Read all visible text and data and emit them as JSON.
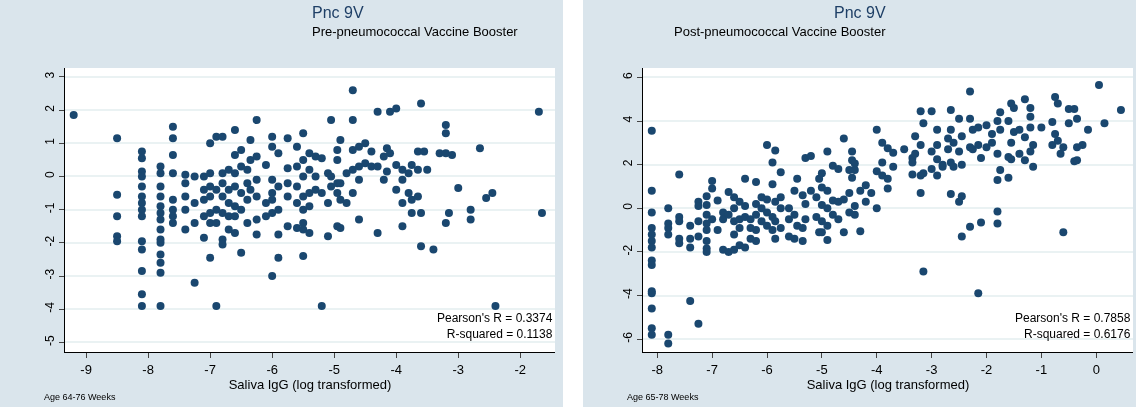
{
  "chart_data": [
    {
      "type": "scatter",
      "title": "Pnc 9V",
      "subtitle": "Pre-pneumococcal Vaccine Booster",
      "xlabel": "Saliva IgG (log transformed)",
      "annotations": [
        "Age 64-76 Weeks",
        "Pearson's R = 0.3374\nR-squared = 0.1138"
      ],
      "color": "#1a476f",
      "marker": "circle",
      "grid": "y",
      "xlim": [
        -9.34,
        -1.44
      ],
      "ylim": [
        -5.29,
        3.27
      ],
      "xticks": [
        -9,
        -8,
        -7,
        -6,
        -5,
        -4,
        -3,
        -2
      ],
      "yticks": [
        -5,
        -4,
        -3,
        -2,
        -1,
        0,
        1,
        2,
        3
      ],
      "x": [
        -9.2,
        -8.5,
        -8.5,
        -8.5,
        -8.5,
        -8.5,
        -8.1,
        -8.1,
        -8.1,
        -8.1,
        -8.1,
        -8.1,
        -8.1,
        -8.1,
        -8.1,
        -8.1,
        -8.1,
        -8.1,
        -8.1,
        -8.1,
        -7.8,
        -7.8,
        -7.8,
        -7.8,
        -7.8,
        -7.8,
        -7.8,
        -7.8,
        -7.8,
        -7.8,
        -7.8,
        -7.8,
        -7.8,
        -7.8,
        -7.6,
        -7.6,
        -7.6,
        -7.6,
        -7.6,
        -7.6,
        -7.6,
        -7.6,
        -7.4,
        -7.4,
        -7.4,
        -7.4,
        -7.4,
        -7.25,
        -7.25,
        -7.25,
        -7.25,
        -7.1,
        -7.1,
        -7.1,
        -7.1,
        -7.1,
        -7.0,
        -7.0,
        -7.0,
        -7.0,
        -7.0,
        -7.0,
        -7.0,
        -6.9,
        -6.9,
        -6.9,
        -6.9,
        -6.9,
        -6.8,
        -6.8,
        -6.8,
        -6.8,
        -6.8,
        -6.8,
        -6.8,
        -6.7,
        -6.7,
        -6.7,
        -6.7,
        -6.7,
        -6.6,
        -6.6,
        -6.6,
        -6.6,
        -6.6,
        -6.6,
        -6.6,
        -6.5,
        -6.5,
        -6.5,
        -6.5,
        -6.5,
        -6.4,
        -6.4,
        -6.4,
        -6.4,
        -6.35,
        -6.35,
        -6.35,
        -6.25,
        -6.25,
        -6.25,
        -6.25,
        -6.25,
        -6.25,
        -6.1,
        -6.1,
        -6.1,
        -6.0,
        -6.0,
        -6.0,
        -6.0,
        -6.0,
        -6.0,
        -6.0,
        -5.9,
        -5.9,
        -5.9,
        -5.9,
        -5.9,
        -5.75,
        -5.75,
        -5.75,
        -5.75,
        -5.75,
        -5.6,
        -5.6,
        -5.6,
        -5.6,
        -5.6,
        -5.5,
        -5.5,
        -5.5,
        -5.5,
        -5.5,
        -5.5,
        -5.5,
        -5.5,
        -5.4,
        -5.4,
        -5.4,
        -5.4,
        -5.4,
        -5.3,
        -5.3,
        -5.3,
        -5.2,
        -5.2,
        -5.2,
        -5.1,
        -5.1,
        -5.1,
        -5.05,
        -5.05,
        -5.05,
        -4.95,
        -4.95,
        -4.95,
        -4.95,
        -4.95,
        -4.9,
        -4.9,
        -4.9,
        -4.9,
        -4.8,
        -4.8,
        -4.7,
        -4.7,
        -4.7,
        -4.7,
        -4.7,
        -4.6,
        -4.6,
        -4.6,
        -4.6,
        -4.5,
        -4.5,
        -4.4,
        -4.4,
        -4.3,
        -4.3,
        -4.3,
        -4.2,
        -4.2,
        -4.15,
        -4.15,
        -4.1,
        -4.1,
        -4.0,
        -4.0,
        -4.0,
        -3.9,
        -3.9,
        -3.9,
        -3.9,
        -3.8,
        -3.8,
        -3.75,
        -3.75,
        -3.75,
        -3.65,
        -3.65,
        -3.65,
        -3.6,
        -3.6,
        -3.6,
        -3.55,
        -3.5,
        -3.4,
        -3.3,
        -3.2,
        -3.2,
        -3.2,
        -3.2,
        -3.15,
        -3.1,
        -3.0,
        -2.8,
        -2.8,
        -2.65,
        -2.55,
        -2.45,
        -2.4,
        -1.7,
        -1.65
      ],
      "values": [
        1.85,
        1.15,
        -0.55,
        -1.2,
        -1.8,
        -1.95,
        0.75,
        0.55,
        0.15,
        0,
        -0.3,
        -0.6,
        -0.8,
        -1.0,
        -1.2,
        -1.95,
        -2.2,
        -2.85,
        -3.55,
        -3.9,
        0.3,
        0.1,
        -0.3,
        -0.6,
        -0.9,
        -1.1,
        -1.3,
        -1.6,
        -1.9,
        -2.0,
        -2.35,
        -2.6,
        -2.9,
        -3.9,
        1.5,
        1.15,
        0.65,
        0.1,
        -0.7,
        -1.0,
        -1.2,
        -1.4,
        0.05,
        -0.2,
        -0.6,
        -1.0,
        -1.6,
        0.0,
        -0.8,
        -1.4,
        -3.2,
        0.0,
        -0.4,
        -0.7,
        -1.2,
        -1.85,
        1.0,
        0.1,
        -0.3,
        -0.6,
        -1.1,
        -1.4,
        -2.45,
        1.2,
        -0.4,
        -1.0,
        -1.4,
        -3.9,
        1.2,
        0.1,
        -0.2,
        -0.6,
        -1.1,
        -1.9,
        -2.05,
        0.2,
        -0.4,
        -0.8,
        -1.2,
        -1.6,
        1.4,
        0.65,
        0.1,
        -0.3,
        -0.9,
        -1.2,
        -1.7,
        0.8,
        0.3,
        -0.5,
        -1.0,
        -2.3,
        0.2,
        -0.2,
        -0.7,
        -1.4,
        1.1,
        0.5,
        -0.4,
        1.7,
        0.6,
        -0.1,
        -0.6,
        -1.3,
        -1.75,
        0.35,
        -0.8,
        -1.2,
        1.2,
        0.9,
        -0.1,
        -0.5,
        -0.7,
        -1.1,
        -3.0,
        0.7,
        -0.3,
        -1.0,
        -1.75,
        -2.45,
        1.15,
        0.25,
        -0.2,
        -0.6,
        -1.5,
        0.9,
        0.3,
        -0.3,
        -0.8,
        -1.55,
        1.3,
        0.5,
        0,
        -0.6,
        -1.0,
        -1.4,
        -1.6,
        -2.4,
        0.7,
        0.2,
        -0.5,
        -0.9,
        -1.7,
        0.6,
        0.0,
        -0.4,
        0.55,
        -0.5,
        -3.9,
        0.1,
        -0.8,
        -1.8,
        1.7,
        0.0,
        -0.3,
        0.8,
        0.5,
        -0.2,
        -0.5,
        -1.5,
        1.1,
        -0.2,
        -0.7,
        -1.55,
        0.1,
        -0.8,
        2.6,
        1.7,
        0.8,
        0.2,
        -0.5,
        0.9,
        0.3,
        -0.1,
        -1.3,
        1.0,
        0.4,
        0.75,
        0.3,
        1.95,
        0.3,
        -1.7,
        0.6,
        -0.1,
        0.85,
        0.15,
        1.95,
        0.7,
        2.05,
        0.35,
        -0.4,
        0.2,
        -0.1,
        -0.8,
        -1.5,
        0.1,
        -0.5,
        0.35,
        -0.7,
        -1.1,
        0.75,
        0.2,
        -0.6,
        2.2,
        -1.1,
        -2.1,
        0.75,
        0.2,
        -2.2,
        0.7,
        1.55,
        1.3,
        0.7,
        -1.4,
        -1.1,
        0.65,
        -0.35,
        -1.0,
        -1.3,
        0.85,
        -0.65,
        -0.5,
        -3.9,
        1.95,
        -1.1
      ]
    },
    {
      "type": "scatter",
      "title": "Pnc 9V",
      "subtitle": "Post-pneumococcal Vaccine Booster",
      "xlabel": "Saliva IgG (log transformed)",
      "annotations": [
        "Age 65-78 Weeks",
        "Pearson's R = 0.7858\nR-squared = 0.6176"
      ],
      "color": "#1a476f",
      "marker": "circle",
      "grid": "y",
      "xlim": [
        -8.26,
        0.67
      ],
      "ylim": [
        -6.59,
        6.43
      ],
      "xticks": [
        -8,
        -7,
        -6,
        -5,
        -4,
        -3,
        -2,
        -1,
        0
      ],
      "yticks": [
        -6,
        -4,
        -2,
        0,
        2,
        4,
        6
      ],
      "x": [
        -8.1,
        -8.1,
        -8.1,
        -8.1,
        -8.1,
        -8.1,
        -8.1,
        -8.1,
        -8.1,
        -8.1,
        -8.1,
        -8.1,
        -8.1,
        -8.1,
        -7.8,
        -7.8,
        -7.8,
        -7.8,
        -7.8,
        -7.8,
        -7.6,
        -7.6,
        -7.6,
        -7.6,
        -7.6,
        -7.4,
        -7.4,
        -7.4,
        -7.4,
        -7.25,
        -7.25,
        -7.25,
        -7.25,
        -7.25,
        -7.1,
        -7.1,
        -7.1,
        -7.1,
        -7.1,
        -7.1,
        -7.1,
        -7.1,
        -7.0,
        -7.0,
        -7.0,
        -6.9,
        -6.9,
        -6.8,
        -6.8,
        -6.8,
        -6.7,
        -6.7,
        -6.7,
        -6.6,
        -6.6,
        -6.6,
        -6.6,
        -6.6,
        -6.5,
        -6.5,
        -6.5,
        -6.5,
        -6.4,
        -6.4,
        -6.4,
        -6.4,
        -6.3,
        -6.3,
        -6.3,
        -6.2,
        -6.2,
        -6.2,
        -6.2,
        -6.2,
        -6.1,
        -6.1,
        -6.1,
        -6.0,
        -6.0,
        -6.0,
        -6.0,
        -5.9,
        -5.9,
        -5.9,
        -5.9,
        -5.85,
        -5.85,
        -5.85,
        -5.85,
        -5.75,
        -5.75,
        -5.75,
        -5.75,
        -5.6,
        -5.6,
        -5.6,
        -5.5,
        -5.5,
        -5.5,
        -5.45,
        -5.45,
        -5.35,
        -5.35,
        -5.35,
        -5.3,
        -5.3,
        -5.3,
        -5.2,
        -5.2,
        -5.1,
        -5.1,
        -5.05,
        -5.05,
        -5.0,
        -5.0,
        -5.0,
        -5.0,
        -5.0,
        -4.9,
        -4.9,
        -4.9,
        -4.9,
        -4.9,
        -4.8,
        -4.8,
        -4.8,
        -4.7,
        -4.7,
        -4.7,
        -4.6,
        -4.6,
        -4.6,
        -4.5,
        -4.5,
        -4.5,
        -4.45,
        -4.45,
        -4.45,
        -4.4,
        -4.4,
        -4.4,
        -4.4,
        -4.3,
        -4.3,
        -4.2,
        -4.2,
        -4.1,
        -4.0,
        -4.0,
        -4.0,
        -3.9,
        -3.9,
        -3.9,
        -3.8,
        -3.8,
        -3.8,
        -3.7,
        -3.7,
        -3.5,
        -3.35,
        -3.35,
        -3.35,
        -3.3,
        -3.3,
        -3.2,
        -3.2,
        -3.2,
        -3.2,
        -3.15,
        -3.15,
        -3.15,
        -3.0,
        -3.0,
        -3.0,
        -2.9,
        -2.9,
        -2.9,
        -2.9,
        -2.8,
        -2.8,
        -2.7,
        -2.7,
        -2.65,
        -2.65,
        -2.65,
        -2.65,
        -2.6,
        -2.6,
        -2.5,
        -2.5,
        -2.5,
        -2.45,
        -2.45,
        -2.45,
        -2.45,
        -2.3,
        -2.3,
        -2.3,
        -2.3,
        -2.25,
        -2.25,
        -2.15,
        -2.15,
        -2.15,
        -2.1,
        -2.1,
        -2.0,
        -2.0,
        -1.9,
        -1.9,
        -1.8,
        -1.8,
        -1.8,
        -1.8,
        -1.8,
        -1.75,
        -1.75,
        -1.75,
        -1.6,
        -1.6,
        -1.6,
        -1.55,
        -1.55,
        -1.55,
        -1.5,
        -1.5,
        -1.4,
        -1.4,
        -1.3,
        -1.3,
        -1.3,
        -1.2,
        -1.2,
        -1.2,
        -1.2,
        -1.15,
        -1.15,
        -1.0,
        -0.8,
        -0.8,
        -0.75,
        -0.75,
        -0.7,
        -0.7,
        -0.65,
        -0.6,
        -0.6,
        -0.5,
        -0.5,
        -0.4,
        -0.4,
        -0.35,
        -0.35,
        -0.35,
        -0.25,
        -0.15,
        0.05,
        0.15,
        0.45
      ],
      "values": [
        3.55,
        0.8,
        -0.2,
        -0.9,
        -1.2,
        -1.5,
        -1.8,
        -2.4,
        -2.6,
        -3.8,
        -3.9,
        -4.6,
        -5.5,
        -5.8,
        0.0,
        -0.7,
        -0.9,
        -1.2,
        -5.8,
        -6.2,
        1.55,
        -0.4,
        -0.6,
        -1.4,
        -1.6,
        -0.8,
        -1.4,
        -1.8,
        -4.25,
        0.3,
        0.1,
        -0.6,
        -1.3,
        -5.3,
        0.55,
        0.15,
        -0.3,
        -0.7,
        -1.0,
        -1.5,
        -1.85,
        -2.0,
        1.25,
        0.9,
        -0.5,
        0.35,
        -1.0,
        -0.2,
        -0.5,
        -1.9,
        0.75,
        -0.3,
        -2.0,
        0.5,
        0.0,
        -0.6,
        -1.2,
        -1.9,
        0.3,
        -0.5,
        -0.9,
        -1.7,
        1.35,
        0.1,
        -0.4,
        -1.8,
        -0.5,
        -0.9,
        -1.4,
        1.2,
        0.2,
        -0.3,
        -1.0,
        -1.5,
        0.5,
        0.0,
        -0.6,
        2.9,
        0.4,
        -0.2,
        -0.8,
        2.1,
        1.1,
        -0.4,
        -1.0,
        2.65,
        0.3,
        -0.6,
        -1.4,
        1.65,
        0.5,
        0.0,
        -0.9,
        0.0,
        -0.5,
        -1.3,
        0.8,
        -0.3,
        -1.4,
        1.35,
        -0.8,
        0.6,
        -0.9,
        -1.5,
        2.3,
        0.2,
        -0.5,
        2.4,
        0.8,
        0.5,
        -0.4,
        1.35,
        -1.1,
        1.6,
        0.95,
        0.15,
        -0.6,
        -1.1,
        2.6,
        0.8,
        0.0,
        -0.8,
        -1.45,
        1.95,
        0.35,
        -0.3,
        1.8,
        0.3,
        -0.5,
        3.2,
        0.4,
        -1.1,
        1.75,
        0.7,
        -0.2,
        2.6,
        2.2,
        1.4,
        2.05,
        1.75,
        0.1,
        -0.3,
        0.8,
        -1.05,
        1.05,
        0.3,
        0.7,
        3.6,
        1.7,
        0.0,
        3.0,
        2.1,
        1.5,
        2.75,
        1.35,
        0.9,
        2.55,
        1.9,
        2.7,
        2.3,
        2.1,
        1.55,
        3.3,
        2.5,
        4.45,
        2.9,
        1.5,
        0.7,
        3.9,
        1.6,
        -2.9,
        4.45,
        2.6,
        1.8,
        3.6,
        2.9,
        2.25,
        1.5,
        2.0,
        1.9,
        3.2,
        2.7,
        4.5,
        3.6,
        2.1,
        0.65,
        3.0,
        1.9,
        4.1,
        2.6,
        0.3,
        3.3,
        2.0,
        -1.3,
        0.55,
        5.35,
        4.1,
        2.8,
        -0.85,
        3.6,
        2.7,
        3.7,
        2.9,
        -3.9,
        2.3,
        -0.65,
        3.8,
        2.8,
        3.4,
        3.0,
        4.0,
        2.5,
        1.3,
        -0.15,
        -0.7,
        4.4,
        3.6,
        1.75,
        4.0,
        2.35,
        1.4,
        4.8,
        3.0,
        2.25,
        4.6,
        3.5,
        3.6,
        2.5,
        5.0,
        3.25,
        2.2,
        4.6,
        4.2,
        3.7,
        2.6,
        2.9,
        1.9,
        3.7,
        3.95,
        2.9,
        5.1,
        3.4,
        4.8,
        3.1,
        2.5,
        2.8,
        -1.1,
        4.55,
        3.9,
        4.55,
        2.15,
        4.1,
        2.8,
        2.2,
        2.9,
        3.6,
        5.65,
        3.9,
        4.5
      ]
    }
  ]
}
